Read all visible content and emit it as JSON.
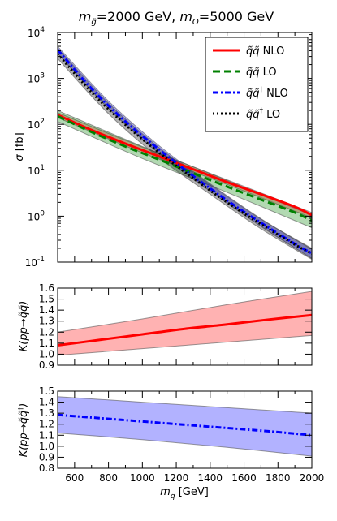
{
  "chart_data": [
    {
      "type": "line",
      "panel": "cross-section",
      "title": "m_g̃ = 2000 GeV, m_O = 5000 GeV",
      "title_parts": {
        "mg": "m",
        "mg_sub": "g̃",
        "mg_val": "=2000 GeV, ",
        "mo": "m",
        "mo_sub": "O",
        "mo_val": "=5000 GeV"
      },
      "xlabel": "",
      "ylabel": "σ [fb]",
      "ylabel_parts": {
        "sym": "σ",
        "unit": " [fb]"
      },
      "yscale": "log",
      "xlim": [
        500,
        2000
      ],
      "ylim": [
        0.1,
        10000
      ],
      "legend_position": "top-right",
      "y_tick_labels": [
        "10",
        "10",
        "10",
        "10",
        "10",
        "10"
      ],
      "y_tick_exponents": [
        "-1",
        "0",
        "1",
        "2",
        "3",
        "4"
      ],
      "series": [
        {
          "name": "q̃q̃ NLO",
          "name_sym": "q̃q̃",
          "name_tag": "NLO",
          "color": "#ff0000",
          "style": "solid",
          "x": [
            500,
            700,
            900,
            1100,
            1300,
            1500,
            1700,
            1900,
            2000
          ],
          "y": [
            160,
            75,
            38,
            20,
            10.5,
            5.5,
            3.0,
            1.6,
            1.05
          ]
        },
        {
          "name": "q̃q̃ LO",
          "name_sym": "q̃q̃",
          "name_tag": "LO",
          "color": "#008000",
          "style": "dashed",
          "x": [
            500,
            700,
            900,
            1100,
            1300,
            1500,
            1700,
            1900,
            2000
          ],
          "y": [
            150,
            68,
            33,
            17,
            8.6,
            4.4,
            2.3,
            1.2,
            0.8
          ]
        },
        {
          "name": "q̃q̃† NLO",
          "name_sym": "q̃q̃",
          "name_sup": "†",
          "name_tag": "NLO",
          "color": "#0000ff",
          "style": "dashdot",
          "x": [
            500,
            700,
            900,
            1100,
            1300,
            1500,
            1700,
            1900,
            2000
          ],
          "y": [
            4200,
            600,
            115,
            28,
            7.5,
            2.2,
            0.72,
            0.25,
            0.155
          ]
        },
        {
          "name": "q̃q̃† LO",
          "name_sym": "q̃q̃",
          "name_sup": "†",
          "name_tag": "LO",
          "color": "#000000",
          "style": "dotted",
          "x": [
            500,
            700,
            900,
            1100,
            1300,
            1500,
            1700,
            1900,
            2000
          ],
          "y": [
            3400,
            500,
            98,
            24,
            6.7,
            2.0,
            0.67,
            0.24,
            0.155
          ]
        }
      ],
      "bands": [
        {
          "color": "#ff0000",
          "x": [
            500,
            1000,
            1500,
            2000
          ],
          "lower": [
            140,
            24,
            4.9,
            0.92
          ],
          "upper": [
            180,
            32,
            6.2,
            1.2
          ]
        },
        {
          "color": "#008000",
          "x": [
            500,
            1000,
            1500,
            2000
          ],
          "lower": [
            115,
            18,
            3.3,
            0.56
          ],
          "upper": [
            200,
            33,
            6.0,
            1.05
          ]
        },
        {
          "color": "#0000ff",
          "x": [
            500,
            800,
            1100,
            1400,
            1700,
            2000
          ],
          "lower": [
            3500,
            220,
            23,
            3.5,
            0.6,
            0.12
          ],
          "upper": [
            5000,
            320,
            34,
            5.1,
            0.88,
            0.19
          ]
        },
        {
          "color": "#000000",
          "x": [
            500,
            800,
            1100,
            1400,
            1700,
            2000
          ],
          "lower": [
            2700,
            170,
            18.5,
            3.0,
            0.53,
            0.115
          ],
          "upper": [
            4600,
            290,
            31,
            4.9,
            0.86,
            0.2
          ]
        }
      ]
    },
    {
      "type": "line",
      "panel": "k-factor-squark-squark",
      "xlabel": "",
      "ylabel": "K(pp → q̃q̃)",
      "ylabel_parts": {
        "pre": "K",
        "inner": "(pp→q̃q̃)"
      },
      "xlim": [
        500,
        2000
      ],
      "ylim": [
        0.9,
        1.6
      ],
      "y_ticks": [
        0.9,
        1.0,
        1.1,
        1.2,
        1.3,
        1.4,
        1.5,
        1.6
      ],
      "y_tick_labels": [
        "0.9",
        "1.0",
        "1.1",
        "1.2",
        "1.3",
        "1.4",
        "1.5",
        "1.6"
      ],
      "series": [
        {
          "color": "#ff0000",
          "style": "solid",
          "x": [
            500,
            750,
            1000,
            1250,
            1500,
            1750,
            2000
          ],
          "y": [
            1.08,
            1.13,
            1.18,
            1.23,
            1.27,
            1.315,
            1.355
          ]
        }
      ],
      "bands": [
        {
          "color": "#ff0000",
          "x": [
            500,
            1000,
            1500,
            2000
          ],
          "lower": [
            0.99,
            1.05,
            1.11,
            1.17
          ],
          "upper": [
            1.2,
            1.32,
            1.45,
            1.57
          ]
        }
      ]
    },
    {
      "type": "line",
      "panel": "k-factor-squark-antisquark",
      "xlabel": "m_q̃ [GeV]",
      "xlabel_parts": {
        "sym": "m",
        "sub": "q̃",
        "unit": " [GeV]"
      },
      "ylabel": "K(pp → q̃q̃†)",
      "ylabel_parts": {
        "pre": "K",
        "inner": "(pp→q̃q̃",
        "sup": "†",
        "close": ")"
      },
      "xlim": [
        500,
        2000
      ],
      "ylim": [
        0.8,
        1.5
      ],
      "x_ticks": [
        600,
        800,
        1000,
        1200,
        1400,
        1600,
        1800,
        2000
      ],
      "x_tick_labels": [
        "600",
        "800",
        "1000",
        "1200",
        "1400",
        "1600",
        "1800",
        "2000"
      ],
      "y_ticks": [
        0.8,
        0.9,
        1.0,
        1.1,
        1.2,
        1.3,
        1.4,
        1.5
      ],
      "y_tick_labels": [
        "0.8",
        "0.9",
        "1.0",
        "1.1",
        "1.2",
        "1.3",
        "1.4",
        "1.5"
      ],
      "series": [
        {
          "color": "#0000ff",
          "style": "dashdot",
          "x": [
            500,
            750,
            1000,
            1250,
            1500,
            1750,
            2000
          ],
          "y": [
            1.285,
            1.255,
            1.225,
            1.195,
            1.165,
            1.135,
            1.1
          ]
        }
      ],
      "bands": [
        {
          "color": "#0000ff",
          "x": [
            500,
            1000,
            1500,
            2000
          ],
          "lower": [
            1.12,
            1.06,
            0.99,
            0.91
          ],
          "upper": [
            1.45,
            1.4,
            1.35,
            1.3
          ]
        }
      ]
    }
  ]
}
